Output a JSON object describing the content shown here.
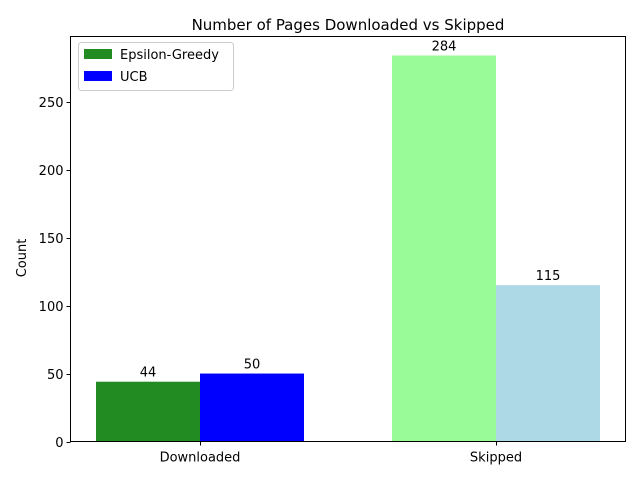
{
  "chart_data": {
    "type": "bar",
    "title": "Number of Pages Downloaded vs Skipped",
    "xlabel": "",
    "ylabel": "Count",
    "categories": [
      "Downloaded",
      "Skipped"
    ],
    "ylim": [
      0,
      298
    ],
    "yticks": [
      0,
      50,
      100,
      150,
      200,
      250
    ],
    "series": [
      {
        "name": "Epsilon-Greedy",
        "values": [
          44,
          284
        ],
        "colors": [
          "#228b22",
          "#98fb98"
        ],
        "legend_color": "#228b22"
      },
      {
        "name": "UCB",
        "values": [
          50,
          115
        ],
        "colors": [
          "#0000ff",
          "#add8e6"
        ],
        "legend_color": "#0000ff"
      }
    ],
    "data_labels": true,
    "legend": "top-left",
    "grid": false
  }
}
